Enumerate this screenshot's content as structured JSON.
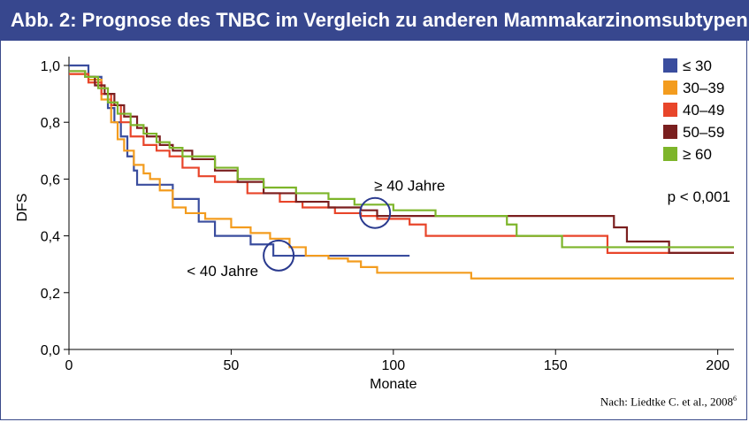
{
  "header": {
    "title": "Abb. 2: Prognose des TNBC im Vergleich zu anderen Mammakarzinomsubtypen"
  },
  "source": {
    "text": "Nach: Liedtke C. et al., 2008",
    "sup": "6"
  },
  "chart_data": {
    "type": "line",
    "step": true,
    "title": "",
    "xlabel": "Monate",
    "ylabel": "DFS",
    "xlim": [
      0,
      205
    ],
    "ylim": [
      0,
      1
    ],
    "xticks": [
      0,
      50,
      100,
      150,
      200
    ],
    "yticks": [
      0.0,
      0.2,
      0.4,
      0.6,
      0.8,
      1.0
    ],
    "ytick_labels": [
      "0,0",
      "0,2",
      "0,4",
      "0,6",
      "0,8",
      "1,0"
    ],
    "grid": false,
    "legend_position": "top-right",
    "annotations": [
      {
        "text": "≥ 40 Jahre",
        "x": 93,
        "y": 0.49
      },
      {
        "text": "< 40 Jahre",
        "x": 66,
        "y": 0.34
      },
      {
        "text": "p < 0,001"
      }
    ],
    "series": [
      {
        "name": "≤ 30",
        "color": "#3a4d9e",
        "points": [
          [
            0,
            1.0
          ],
          [
            5,
            1.0
          ],
          [
            6,
            0.96
          ],
          [
            10,
            0.9
          ],
          [
            12,
            0.85
          ],
          [
            14,
            0.8
          ],
          [
            16,
            0.75
          ],
          [
            18,
            0.68
          ],
          [
            20,
            0.63
          ],
          [
            20,
            0.63
          ],
          [
            21,
            0.58
          ],
          [
            27,
            0.58
          ],
          [
            32,
            0.53
          ],
          [
            40,
            0.45
          ],
          [
            45,
            0.4
          ],
          [
            56,
            0.37
          ],
          [
            63,
            0.33
          ],
          [
            105,
            0.33
          ]
        ]
      },
      {
        "name": "30–39",
        "color": "#f39c1e",
        "points": [
          [
            0,
            0.97
          ],
          [
            6,
            0.95
          ],
          [
            10,
            0.88
          ],
          [
            13,
            0.8
          ],
          [
            15,
            0.74
          ],
          [
            17,
            0.7
          ],
          [
            20,
            0.65
          ],
          [
            23,
            0.62
          ],
          [
            25,
            0.6
          ],
          [
            28,
            0.56
          ],
          [
            32,
            0.5
          ],
          [
            36,
            0.48
          ],
          [
            42,
            0.46
          ],
          [
            50,
            0.43
          ],
          [
            56,
            0.41
          ],
          [
            62,
            0.39
          ],
          [
            68,
            0.36
          ],
          [
            73,
            0.33
          ],
          [
            80,
            0.32
          ],
          [
            86,
            0.31
          ],
          [
            90,
            0.29
          ],
          [
            95,
            0.27
          ],
          [
            110,
            0.27
          ],
          [
            124,
            0.25
          ],
          [
            205,
            0.25
          ]
        ]
      },
      {
        "name": "40–49",
        "color": "#e8452a",
        "points": [
          [
            0,
            0.97
          ],
          [
            6,
            0.94
          ],
          [
            10,
            0.9
          ],
          [
            13,
            0.86
          ],
          [
            16,
            0.8
          ],
          [
            19,
            0.75
          ],
          [
            23,
            0.72
          ],
          [
            27,
            0.7
          ],
          [
            31,
            0.68
          ],
          [
            35,
            0.64
          ],
          [
            40,
            0.61
          ],
          [
            45,
            0.59
          ],
          [
            55,
            0.55
          ],
          [
            65,
            0.52
          ],
          [
            72,
            0.5
          ],
          [
            82,
            0.48
          ],
          [
            90,
            0.47
          ],
          [
            95,
            0.46
          ],
          [
            105,
            0.44
          ],
          [
            110,
            0.4
          ],
          [
            145,
            0.4
          ],
          [
            166,
            0.4
          ],
          [
            166,
            0.34
          ],
          [
            205,
            0.34
          ]
        ]
      },
      {
        "name": "50–59",
        "color": "#7a1f1f",
        "points": [
          [
            0,
            0.98
          ],
          [
            5,
            0.96
          ],
          [
            8,
            0.93
          ],
          [
            11,
            0.9
          ],
          [
            14,
            0.86
          ],
          [
            17,
            0.82
          ],
          [
            21,
            0.78
          ],
          [
            24,
            0.75
          ],
          [
            28,
            0.72
          ],
          [
            32,
            0.7
          ],
          [
            38,
            0.67
          ],
          [
            45,
            0.63
          ],
          [
            52,
            0.59
          ],
          [
            60,
            0.55
          ],
          [
            70,
            0.52
          ],
          [
            80,
            0.5
          ],
          [
            90,
            0.49
          ],
          [
            95,
            0.47
          ],
          [
            150,
            0.47
          ],
          [
            164,
            0.47
          ],
          [
            168,
            0.43
          ],
          [
            172,
            0.38
          ],
          [
            185,
            0.34
          ],
          [
            205,
            0.34
          ]
        ]
      },
      {
        "name": "≥ 60",
        "color": "#7db52a",
        "points": [
          [
            0,
            0.98
          ],
          [
            5,
            0.96
          ],
          [
            9,
            0.92
          ],
          [
            12,
            0.87
          ],
          [
            15,
            0.83
          ],
          [
            19,
            0.79
          ],
          [
            23,
            0.76
          ],
          [
            27,
            0.73
          ],
          [
            31,
            0.71
          ],
          [
            35,
            0.68
          ],
          [
            45,
            0.64
          ],
          [
            52,
            0.6
          ],
          [
            60,
            0.57
          ],
          [
            70,
            0.55
          ],
          [
            80,
            0.53
          ],
          [
            88,
            0.51
          ],
          [
            100,
            0.49
          ],
          [
            113,
            0.47
          ],
          [
            135,
            0.44
          ],
          [
            138,
            0.4
          ],
          [
            150,
            0.4
          ],
          [
            152,
            0.36
          ],
          [
            205,
            0.36
          ]
        ]
      }
    ]
  }
}
